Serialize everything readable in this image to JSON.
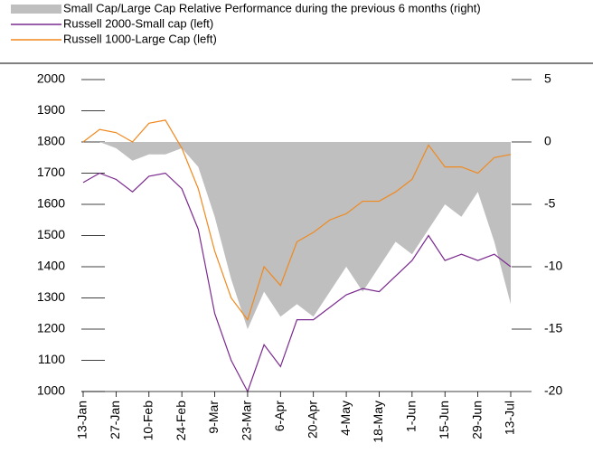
{
  "chart_data": {
    "type": "line",
    "categories": [
      "13-Jan",
      null,
      "27-Jan",
      null,
      "10-Feb",
      null,
      "24-Feb",
      null,
      "9-Mar",
      null,
      "23-Mar",
      null,
      "6-Apr",
      null,
      "20-Apr",
      null,
      "4-May",
      null,
      "18-May",
      null,
      "1-Jun",
      null,
      "15-Jun",
      null,
      "29-Jun",
      null,
      "13-Jul"
    ],
    "series": [
      {
        "name": "Small Cap/Large Cap Relative Performance during the previous 6 months (right)",
        "type": "area",
        "axis": "y2",
        "color": "#bfbfbf",
        "values": [
          0,
          0,
          -0.5,
          -1.5,
          -1,
          -1,
          -0.5,
          -2,
          -6,
          -11,
          -15,
          -12,
          -14,
          -13,
          -14,
          -12,
          -10,
          -12,
          -10,
          -8,
          -9,
          -7,
          -5,
          -6,
          -4,
          -8,
          -13
        ]
      },
      {
        "name": "Russell 2000-Small cap (left)",
        "type": "line",
        "color": "#7b2a8f",
        "values": [
          1670,
          1700,
          1680,
          1640,
          1690,
          1700,
          1650,
          1520,
          1250,
          1100,
          1000,
          1150,
          1080,
          1230,
          1230,
          1270,
          1310,
          1330,
          1320,
          1370,
          1420,
          1500,
          1420,
          1440,
          1420,
          1440,
          1400
        ]
      },
      {
        "name": "Russell 1000-Large Cap (left)",
        "type": "line",
        "color": "#f0891e",
        "values": [
          1800,
          1840,
          1830,
          1800,
          1860,
          1870,
          1780,
          1650,
          1450,
          1300,
          1230,
          1400,
          1340,
          1480,
          1510,
          1550,
          1570,
          1610,
          1610,
          1640,
          1680,
          1790,
          1720,
          1720,
          1700,
          1750,
          1760
        ]
      }
    ],
    "ylim": [
      1000,
      2000
    ],
    "yticks": [
      1000,
      1100,
      1200,
      1300,
      1400,
      1500,
      1600,
      1700,
      1800,
      1900,
      2000
    ],
    "y2lim": [
      -20,
      5
    ],
    "y2ticks": [
      -20,
      -15,
      -10,
      -5,
      0,
      5
    ]
  }
}
